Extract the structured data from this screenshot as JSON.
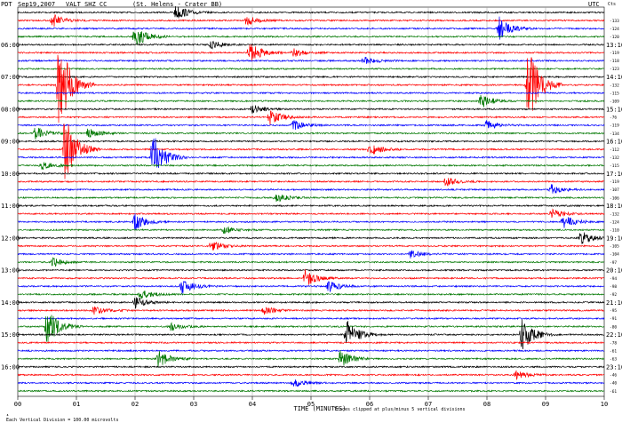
{
  "header": {
    "tz_left": "PDT",
    "date": "Sep19,2007",
    "station": "VALT SHZ CC",
    "location": "(St. Helens - Crater BB)",
    "tz_right": "UTC",
    "scale_unit": "Cts"
  },
  "footer": {
    "scale_note": "Each Vertical Division = 100.00 microvolts",
    "clip_note": "Traces clipped at plus/minus 5 vertical divisions"
  },
  "chart_data": {
    "type": "line",
    "title": "",
    "xlabel": "TIME (MINUTES)",
    "ylabel": "",
    "x_ticks": [
      "00",
      "01",
      "02",
      "03",
      "04",
      "05",
      "06",
      "07",
      "08",
      "09",
      "10"
    ],
    "xlim": [
      0,
      10
    ],
    "trace_colors": [
      "#000000",
      "#ff0000",
      "#0000ff",
      "#007700"
    ],
    "trace_count": 48,
    "left_hour_labels": [
      "06:00",
      "07:00",
      "08:00",
      "09:00",
      "10:00",
      "11:00",
      "12:00",
      "13:00",
      "14:00",
      "15:00",
      "16:00"
    ],
    "right_hour_labels": [
      "13:10",
      "14:10",
      "15:10",
      "16:10",
      "17:10",
      "18:10",
      "19:10",
      "20:10",
      "21:10",
      "22:10",
      "23:10"
    ],
    "trace_offsets": [
      "-121",
      "-133",
      "-124",
      "-120",
      "-76",
      "-119",
      "-118",
      "-123",
      "-117",
      "-132",
      "-115",
      "-109",
      "-114",
      "-76",
      "-119",
      "-134",
      "-123",
      "-112",
      "-132",
      "-115",
      "-97",
      "-119",
      "-107",
      "-106",
      "-123",
      "-132",
      "-124",
      "-110",
      "-120",
      "-105",
      "-104",
      "-97",
      "-86",
      "-94",
      "-98",
      "-92",
      "-95",
      "-95",
      "-91",
      "-80",
      "-83",
      "-78",
      "-61",
      "-63",
      "-60",
      "-46",
      "-40",
      "-61"
    ],
    "events": [
      {
        "trace": 0,
        "minute": 2.7,
        "amp": 2.2
      },
      {
        "trace": 1,
        "minute": 0.6,
        "amp": 1.8
      },
      {
        "trace": 1,
        "minute": 3.9,
        "amp": 1.4
      },
      {
        "trace": 2,
        "minute": 8.2,
        "amp": 3.5
      },
      {
        "trace": 3,
        "minute": 2.0,
        "amp": 3.2
      },
      {
        "trace": 4,
        "minute": 3.3,
        "amp": 1.2
      },
      {
        "trace": 5,
        "minute": 3.95,
        "amp": 3.0
      },
      {
        "trace": 5,
        "minute": 4.7,
        "amp": 1.2
      },
      {
        "trace": 6,
        "minute": 5.9,
        "amp": 1.1
      },
      {
        "trace": 9,
        "minute": 0.7,
        "amp": 14.0
      },
      {
        "trace": 9,
        "minute": 8.7,
        "amp": 12.0
      },
      {
        "trace": 11,
        "minute": 7.9,
        "amp": 2.0
      },
      {
        "trace": 12,
        "minute": 4.0,
        "amp": 1.2
      },
      {
        "trace": 13,
        "minute": 4.3,
        "amp": 2.2
      },
      {
        "trace": 14,
        "minute": 4.7,
        "amp": 1.6
      },
      {
        "trace": 14,
        "minute": 8.0,
        "amp": 1.6
      },
      {
        "trace": 15,
        "minute": 0.3,
        "amp": 1.8
      },
      {
        "trace": 15,
        "minute": 1.2,
        "amp": 1.4
      },
      {
        "trace": 17,
        "minute": 0.8,
        "amp": 10.0
      },
      {
        "trace": 17,
        "minute": 6.0,
        "amp": 2.2
      },
      {
        "trace": 18,
        "minute": 2.3,
        "amp": 7.0
      },
      {
        "trace": 19,
        "minute": 0.4,
        "amp": 1.2
      },
      {
        "trace": 21,
        "minute": 7.3,
        "amp": 1.3
      },
      {
        "trace": 22,
        "minute": 9.1,
        "amp": 1.4
      },
      {
        "trace": 23,
        "minute": 4.4,
        "amp": 1.4
      },
      {
        "trace": 25,
        "minute": 9.1,
        "amp": 1.5
      },
      {
        "trace": 26,
        "minute": 2.0,
        "amp": 2.5
      },
      {
        "trace": 26,
        "minute": 9.3,
        "amp": 2.0
      },
      {
        "trace": 27,
        "minute": 3.5,
        "amp": 1.2
      },
      {
        "trace": 28,
        "minute": 9.6,
        "amp": 2.0
      },
      {
        "trace": 29,
        "minute": 3.3,
        "amp": 1.6
      },
      {
        "trace": 30,
        "minute": 6.7,
        "amp": 1.1
      },
      {
        "trace": 31,
        "minute": 0.6,
        "amp": 1.2
      },
      {
        "trace": 33,
        "minute": 4.9,
        "amp": 2.6
      },
      {
        "trace": 34,
        "minute": 2.8,
        "amp": 2.4
      },
      {
        "trace": 34,
        "minute": 5.3,
        "amp": 1.6
      },
      {
        "trace": 35,
        "minute": 2.1,
        "amp": 1.4
      },
      {
        "trace": 36,
        "minute": 2.0,
        "amp": 1.8
      },
      {
        "trace": 37,
        "minute": 1.3,
        "amp": 1.2
      },
      {
        "trace": 37,
        "minute": 4.2,
        "amp": 1.2
      },
      {
        "trace": 39,
        "minute": 0.5,
        "amp": 6.0
      },
      {
        "trace": 39,
        "minute": 2.6,
        "amp": 1.2
      },
      {
        "trace": 40,
        "minute": 5.6,
        "amp": 4.5
      },
      {
        "trace": 40,
        "minute": 8.6,
        "amp": 5.0
      },
      {
        "trace": 43,
        "minute": 2.4,
        "amp": 2.5
      },
      {
        "trace": 43,
        "minute": 5.5,
        "amp": 2.8
      },
      {
        "trace": 45,
        "minute": 8.5,
        "amp": 1.2
      },
      {
        "trace": 46,
        "minute": 4.7,
        "amp": 1.2
      }
    ]
  }
}
